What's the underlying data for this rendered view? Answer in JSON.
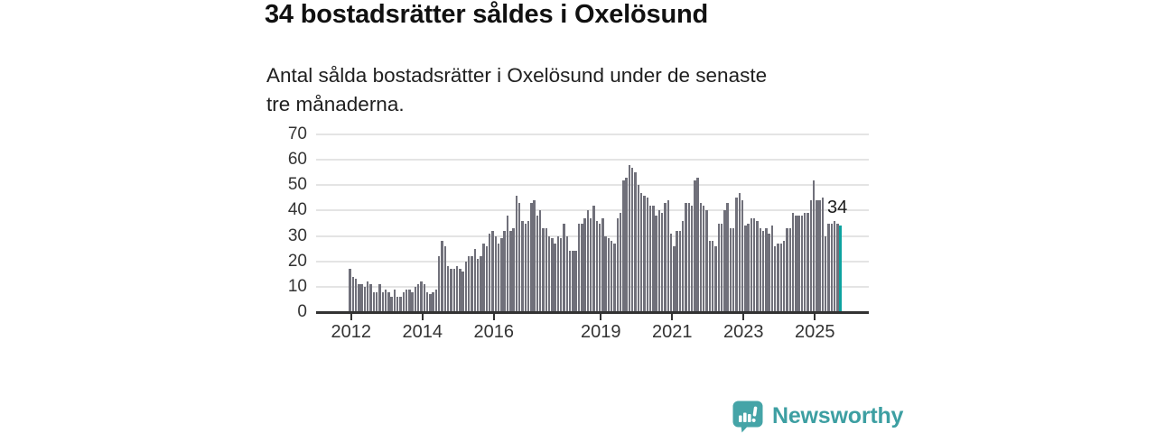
{
  "header": {
    "title": "34 bostadsrätter såldes i Oxelösund",
    "subtitle_line1": "Antal sålda bostadsrätter i Oxelösund under de senaste",
    "subtitle_line2": "tre månaderna."
  },
  "chart_data": {
    "type": "bar",
    "title": "34 bostadsrätter såldes i Oxelösund",
    "subtitle": "Antal sålda bostadsrätter i Oxelösund under de senaste tre månaderna.",
    "xlabel": "",
    "ylabel": "",
    "ylim": [
      0,
      70
    ],
    "yticks": [
      0,
      10,
      20,
      30,
      40,
      50,
      60,
      70
    ],
    "grid": "horizontal",
    "frequency": "monthly",
    "start_period": "2012-01",
    "annotation_label": "34",
    "annotation_value": 34,
    "highlight_last_bar": true,
    "series": [
      {
        "year": 2012,
        "values": [
          17,
          14,
          13,
          11,
          11,
          10,
          12,
          11,
          8,
          8,
          11,
          8
        ]
      },
      {
        "year": 2013,
        "values": [
          9,
          8,
          6,
          9,
          6,
          6,
          8,
          9,
          9,
          8,
          10,
          11
        ]
      },
      {
        "year": 2014,
        "values": [
          12,
          11,
          8,
          7,
          8,
          9,
          22,
          28,
          26,
          18,
          17,
          17
        ]
      },
      {
        "year": 2015,
        "values": [
          18,
          17,
          16,
          20,
          22,
          22,
          25,
          21,
          22,
          27,
          26,
          31
        ]
      },
      {
        "year": 2016,
        "values": [
          32,
          30,
          27,
          29,
          32,
          38,
          32,
          33,
          46,
          43,
          36,
          35
        ]
      },
      {
        "year": 2017,
        "values": [
          36,
          43,
          44,
          38,
          40,
          33,
          33,
          30,
          29,
          27,
          30,
          29
        ]
      },
      {
        "year": 2018,
        "values": [
          35,
          30,
          24,
          24,
          24,
          35,
          35,
          37,
          40,
          37,
          42,
          36
        ]
      },
      {
        "year": 2019,
        "values": [
          35,
          37,
          30,
          29,
          28,
          27,
          37,
          39,
          52,
          53,
          58,
          57
        ]
      },
      {
        "year": 2020,
        "values": [
          55,
          50,
          47,
          46,
          45,
          42,
          42,
          38,
          40,
          39,
          43,
          44
        ]
      },
      {
        "year": 2021,
        "values": [
          31,
          26,
          32,
          32,
          36,
          43,
          43,
          42,
          52,
          53,
          43,
          42
        ]
      },
      {
        "year": 2022,
        "values": [
          40,
          28,
          28,
          26,
          35,
          35,
          40,
          43,
          33,
          33,
          45,
          47
        ]
      },
      {
        "year": 2023,
        "values": [
          44,
          34,
          35,
          37,
          37,
          36,
          33,
          32,
          33,
          31,
          34,
          26
        ]
      },
      {
        "year": 2024,
        "values": [
          27,
          27,
          28,
          33,
          33,
          39,
          38,
          38,
          38,
          39,
          39,
          44
        ]
      },
      {
        "year": 2025,
        "values": [
          52,
          44,
          44,
          45,
          30,
          35,
          35,
          36,
          35,
          34
        ]
      }
    ],
    "xticks": [
      {
        "label": "2012",
        "month_index": 0
      },
      {
        "label": "2014",
        "month_index": 24
      },
      {
        "label": "2016",
        "month_index": 48
      },
      {
        "label": "2019",
        "month_index": 84
      },
      {
        "label": "2021",
        "month_index": 108
      },
      {
        "label": "2023",
        "month_index": 132
      },
      {
        "label": "2025",
        "month_index": 156
      }
    ],
    "colors": {
      "bar": "#70707a",
      "highlight": "#0da3a0",
      "grid": "#e4e4e4",
      "axis": "#333333",
      "tick_text": "#333333"
    }
  },
  "footer": {
    "brand": "Newsworthy",
    "brand_color": "#3d9fa2",
    "logo_icon": "bar-chart-speech-bubble-icon"
  }
}
